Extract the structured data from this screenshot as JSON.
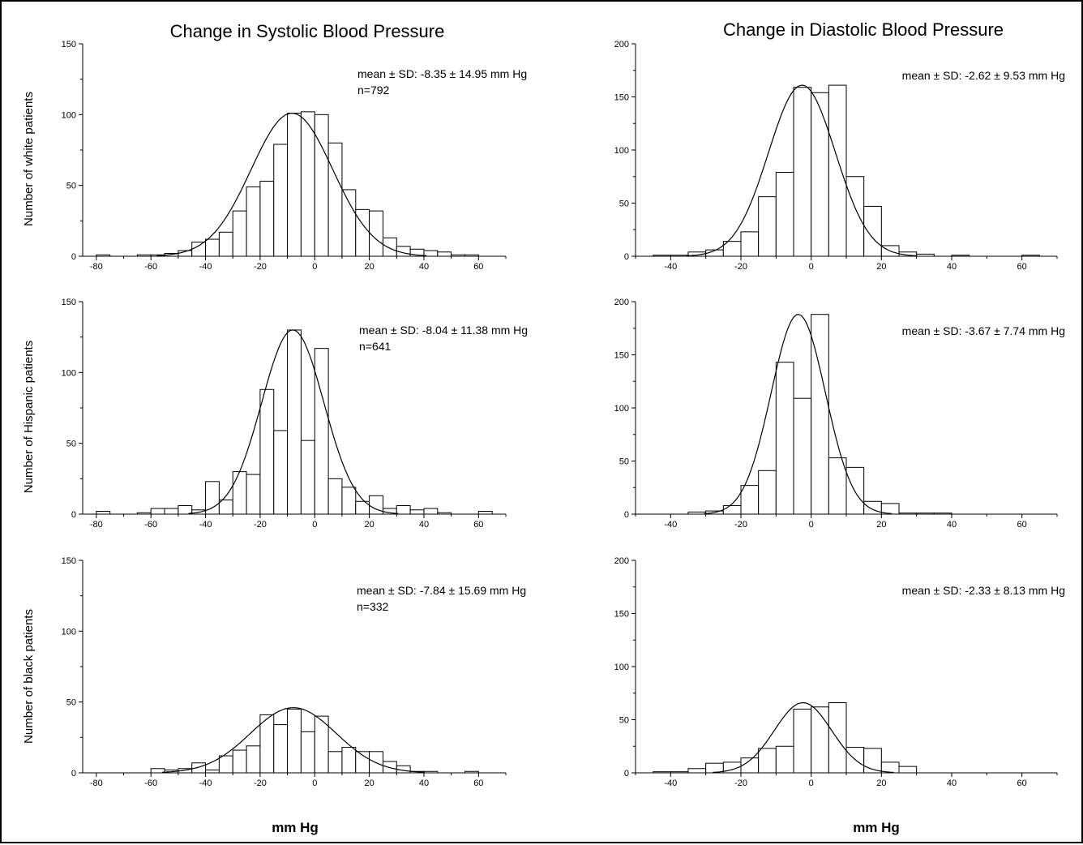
{
  "figure": {
    "column_titles": [
      "Change in Systolic Blood Pressure",
      "Change in Diastolic Blood Pressure"
    ],
    "row_ylabels": [
      "Number of white patients",
      "Number of Hispanic patients",
      "Number of black patients"
    ],
    "xlabels": [
      "mm Hg",
      "mm Hg"
    ]
  },
  "chart_data": [
    {
      "type": "bar",
      "panel": "systolic-white",
      "annotation": "mean ± SD: -8.35 ± 14.95 mm Hg",
      "n_label": "n=792",
      "xlim": [
        -85,
        70
      ],
      "ylim": [
        0,
        150
      ],
      "xticks": [
        -80,
        -60,
        -40,
        -20,
        0,
        20,
        40,
        60
      ],
      "yticks": [
        0,
        50,
        100,
        150
      ],
      "bin_width": 5,
      "bin_starts": [
        -80,
        -75,
        -70,
        -65,
        -60,
        -55,
        -50,
        -45,
        -40,
        -35,
        -30,
        -25,
        -20,
        -15,
        -10,
        -5,
        0,
        5,
        10,
        15,
        20,
        25,
        30,
        35,
        40,
        45,
        50,
        55
      ],
      "values": [
        1,
        0,
        0,
        1,
        1,
        2,
        4,
        10,
        12,
        17,
        32,
        49,
        53,
        79,
        101,
        102,
        100,
        80,
        47,
        33,
        32,
        13,
        7,
        5,
        4,
        3,
        1,
        1
      ],
      "fit": {
        "mean": -8.35,
        "sd": 14.95,
        "peak": 101
      }
    },
    {
      "type": "bar",
      "panel": "diastolic-white",
      "annotation": "mean ± SD: -2.62 ± 9.53 mm Hg",
      "xlim": [
        -50,
        70
      ],
      "ylim": [
        0,
        200
      ],
      "xticks": [
        -40,
        -20,
        0,
        20,
        40,
        60
      ],
      "yticks": [
        0,
        50,
        100,
        150,
        200
      ],
      "bin_width": 5,
      "bin_starts": [
        -45,
        -40,
        -35,
        -30,
        -25,
        -20,
        -15,
        -10,
        -5,
        0,
        5,
        10,
        15,
        20,
        25,
        30,
        35,
        40,
        45,
        50,
        55,
        60
      ],
      "values": [
        1,
        1,
        4,
        6,
        14,
        23,
        56,
        79,
        159,
        154,
        161,
        75,
        47,
        10,
        4,
        2,
        0,
        1,
        0,
        0,
        0,
        1
      ],
      "fit": {
        "mean": -2.62,
        "sd": 9.53,
        "peak": 161
      }
    },
    {
      "type": "bar",
      "panel": "systolic-hispanic",
      "annotation": "mean ± SD: -8.04 ± 11.38 mm Hg",
      "n_label": "n=641",
      "xlim": [
        -85,
        70
      ],
      "ylim": [
        0,
        150
      ],
      "xticks": [
        -80,
        -60,
        -40,
        -20,
        0,
        20,
        40,
        60
      ],
      "yticks": [
        0,
        50,
        100,
        150
      ],
      "bin_width": 5,
      "bin_starts": [
        -80,
        -75,
        -70,
        -65,
        -60,
        -55,
        -50,
        -45,
        -40,
        -35,
        -30,
        -25,
        -20,
        -15,
        -10,
        -5,
        0,
        5,
        10,
        15,
        20,
        25,
        30,
        35,
        40,
        45,
        50,
        55,
        60
      ],
      "values": [
        2,
        0,
        0,
        1,
        4,
        4,
        6,
        3,
        23,
        10,
        30,
        28,
        88,
        59,
        130,
        52,
        117,
        25,
        19,
        9,
        13,
        4,
        6,
        3,
        4,
        1,
        0,
        0,
        2
      ],
      "fit": {
        "mean": -8.04,
        "sd": 11.38,
        "peak": 130
      }
    },
    {
      "type": "bar",
      "panel": "diastolic-hispanic",
      "annotation": "mean ± SD: -3.67 ± 7.74 mm Hg",
      "xlim": [
        -50,
        70
      ],
      "ylim": [
        0,
        200
      ],
      "xticks": [
        -40,
        -20,
        0,
        20,
        40,
        60
      ],
      "yticks": [
        0,
        50,
        100,
        150,
        200
      ],
      "bin_width": 5,
      "bin_starts": [
        -40,
        -35,
        -30,
        -25,
        -20,
        -15,
        -10,
        -5,
        0,
        5,
        10,
        15,
        20,
        25,
        30,
        35
      ],
      "values": [
        0,
        2,
        3,
        8,
        27,
        41,
        143,
        109,
        188,
        53,
        44,
        12,
        10,
        1,
        1,
        1
      ],
      "fit": {
        "mean": -3.67,
        "sd": 7.74,
        "peak": 188
      }
    },
    {
      "type": "bar",
      "panel": "systolic-black",
      "annotation": "mean ± SD: -7.84 ± 15.69 mm Hg",
      "n_label": "n=332",
      "xlim": [
        -85,
        70
      ],
      "ylim": [
        0,
        150
      ],
      "xticks": [
        -80,
        -60,
        -40,
        -20,
        0,
        20,
        40,
        60
      ],
      "yticks": [
        0,
        50,
        100,
        150
      ],
      "bin_width": 5,
      "bin_starts": [
        -60,
        -55,
        -50,
        -45,
        -40,
        -35,
        -30,
        -25,
        -20,
        -15,
        -10,
        -5,
        0,
        5,
        10,
        15,
        20,
        25,
        30,
        35,
        40,
        45,
        50,
        55
      ],
      "values": [
        3,
        2,
        3,
        7,
        2,
        12,
        16,
        19,
        41,
        34,
        45,
        29,
        40,
        15,
        18,
        15,
        15,
        8,
        5,
        1,
        1,
        0,
        0,
        1
      ],
      "fit": {
        "mean": -7.84,
        "sd": 15.69,
        "peak": 46
      }
    },
    {
      "type": "bar",
      "panel": "diastolic-black",
      "annotation": "mean ± SD: -2.33 ± 8.13 mm Hg",
      "xlim": [
        -50,
        70
      ],
      "ylim": [
        0,
        200
      ],
      "xticks": [
        -40,
        -20,
        0,
        20,
        40,
        60
      ],
      "yticks": [
        0,
        50,
        100,
        150,
        200
      ],
      "bin_width": 5,
      "bin_starts": [
        -45,
        -40,
        -35,
        -30,
        -25,
        -20,
        -15,
        -10,
        -5,
        0,
        5,
        10,
        15,
        20,
        25
      ],
      "values": [
        1,
        1,
        4,
        9,
        10,
        14,
        23,
        25,
        60,
        62,
        66,
        24,
        23,
        10,
        6
      ],
      "fit": {
        "mean": -2.33,
        "sd": 8.13,
        "peak": 66
      }
    }
  ]
}
